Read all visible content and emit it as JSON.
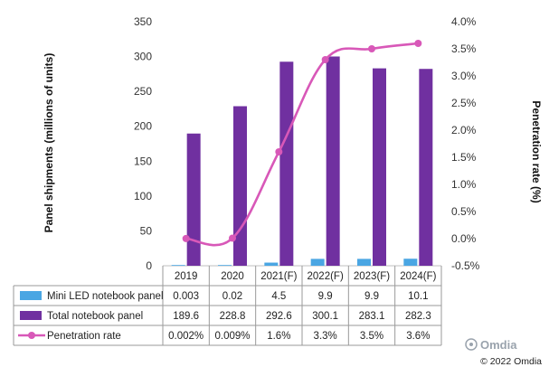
{
  "chart_data": {
    "type": "bar",
    "categories": [
      "2019",
      "2020",
      "2021(F)",
      "2022(F)",
      "2023(F)",
      "2024(F)"
    ],
    "ylabel": "Panel shipments (millions of units)",
    "y2label": "Penetration rate (%)",
    "ylim": [
      0,
      350
    ],
    "yticks": [
      "0",
      "50",
      "100",
      "150",
      "200",
      "250",
      "300",
      "350"
    ],
    "y2lim": [
      -0.5,
      4.0
    ],
    "y2ticks": [
      "-0.5%",
      "0.0%",
      "0.5%",
      "1.0%",
      "1.5%",
      "2.0%",
      "2.5%",
      "3.0%",
      "3.5%",
      "4.0%"
    ],
    "series": [
      {
        "name": "Mini LED notebook panel",
        "values": [
          0.003,
          0.02,
          4.5,
          9.9,
          9.9,
          10.1
        ],
        "labels": [
          "0.003",
          "0.02",
          "4.5",
          "9.9",
          "9.9",
          "10.1"
        ],
        "color": "#4aa6e3"
      },
      {
        "name": "Total notebook panel",
        "values": [
          189.6,
          228.8,
          292.6,
          300.1,
          283.1,
          282.3
        ],
        "labels": [
          "189.6",
          "228.8",
          "292.6",
          "300.1",
          "283.1",
          "282.3"
        ],
        "color": "#7030a0"
      },
      {
        "name": "Penetration rate",
        "values": [
          0.002,
          0.009,
          1.6,
          3.3,
          3.5,
          3.6
        ],
        "labels": [
          "0.002%",
          "0.009%",
          "1.6%",
          "3.3%",
          "3.5%",
          "3.6%"
        ],
        "color": "#d858b8",
        "axis": "right"
      }
    ]
  },
  "watermark": "Omdia",
  "copyright": "© 2022 Omdia"
}
